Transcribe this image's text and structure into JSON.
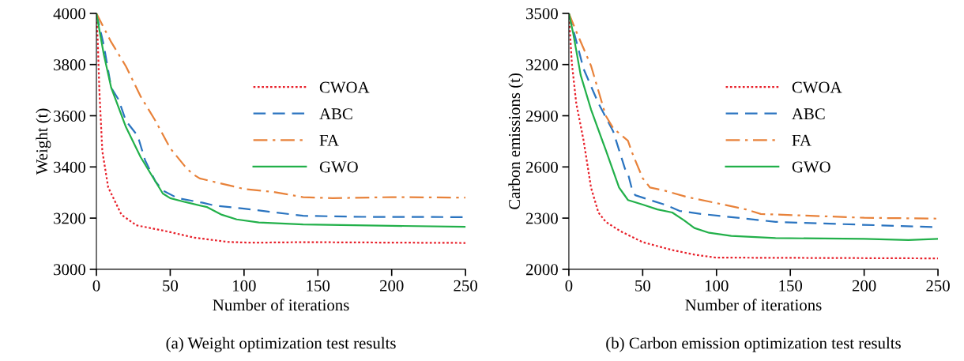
{
  "chart_data": [
    {
      "type": "line",
      "xlabel": "Number of iterations",
      "ylabel": "Weight (t)",
      "annotations": [
        "(a) Weight optimization test results"
      ],
      "xlim": [
        0,
        250
      ],
      "xticks": [
        0,
        50,
        100,
        150,
        200,
        250
      ],
      "ylim": [
        3000,
        4000
      ],
      "yticks": [
        3000,
        3200,
        3400,
        3600,
        3800,
        4000
      ],
      "legend": "center right",
      "grid": false,
      "series": [
        {
          "name": "CWOA",
          "color": "#e8202a",
          "line_style": "dotted",
          "x": [
            0,
            1,
            2,
            4,
            8,
            17,
            27,
            35,
            48,
            66,
            89,
            104,
            141,
            250
          ],
          "values": [
            4000,
            3880,
            3700,
            3462,
            3320,
            3213,
            3172,
            3163,
            3148,
            3124,
            3107,
            3104,
            3106,
            3103
          ]
        },
        {
          "name": "ABC",
          "color": "#2a74c0",
          "line_style": "dashed",
          "x": [
            0,
            5,
            10,
            15,
            20,
            28,
            33,
            40,
            45,
            55,
            72,
            80,
            100,
            140,
            180,
            250
          ],
          "values": [
            4000,
            3876,
            3710,
            3663,
            3580,
            3521,
            3426,
            3343,
            3308,
            3278,
            3260,
            3249,
            3237,
            3209,
            3205,
            3204
          ]
        },
        {
          "name": "FA",
          "color": "#e8823a",
          "line_style": "dashdot",
          "x": [
            0,
            10,
            20,
            30,
            40,
            50,
            60,
            65,
            70,
            100,
            120,
            140,
            160,
            200,
            250
          ],
          "values": [
            4000,
            3888,
            3793,
            3675,
            3580,
            3473,
            3402,
            3373,
            3355,
            3314,
            3302,
            3282,
            3278,
            3282,
            3280
          ]
        },
        {
          "name": "GWO",
          "color": "#22b04a",
          "line_style": "solid",
          "x": [
            0,
            5,
            10,
            20,
            30,
            40,
            45,
            50,
            60,
            75,
            85,
            95,
            110,
            140,
            200,
            250
          ],
          "values": [
            4000,
            3840,
            3710,
            3556,
            3438,
            3343,
            3296,
            3278,
            3263,
            3243,
            3213,
            3195,
            3183,
            3175,
            3170,
            3166
          ]
        }
      ]
    },
    {
      "type": "line",
      "xlabel": "Number of iterations",
      "ylabel": "Carbon emissions (t)",
      "annotations": [
        "(b) Carbon emission optimization test results"
      ],
      "xlim": [
        0,
        250
      ],
      "xticks": [
        0,
        50,
        100,
        150,
        200,
        250
      ],
      "ylim": [
        2000,
        3500
      ],
      "yticks": [
        2000,
        2300,
        2600,
        2900,
        3200,
        3500
      ],
      "legend": "center right",
      "grid": false,
      "series": [
        {
          "name": "CWOA",
          "color": "#e8202a",
          "line_style": "dotted",
          "x": [
            0,
            2,
            5,
            10,
            15,
            20,
            25,
            35,
            50,
            70,
            85,
            100,
            120,
            250
          ],
          "values": [
            3500,
            3211,
            2973,
            2754,
            2479,
            2333,
            2278,
            2223,
            2159,
            2113,
            2086,
            2068,
            2068,
            2064
          ]
        },
        {
          "name": "ABC",
          "color": "#2a74c0",
          "line_style": "dashed",
          "x": [
            0,
            5,
            10,
            20,
            30,
            38,
            40,
            43,
            45,
            55,
            65,
            75,
            90,
            110,
            140,
            170,
            250
          ],
          "values": [
            3500,
            3339,
            3174,
            2973,
            2809,
            2589,
            2562,
            2461,
            2434,
            2406,
            2379,
            2342,
            2324,
            2306,
            2278,
            2269,
            2247
          ]
        },
        {
          "name": "FA",
          "color": "#e8823a",
          "line_style": "dashdot",
          "x": [
            0,
            5,
            15,
            25,
            30,
            40,
            43,
            50,
            55,
            65,
            80,
            100,
            120,
            130,
            160,
            200,
            250
          ],
          "values": [
            3500,
            3394,
            3193,
            2900,
            2827,
            2754,
            2680,
            2534,
            2479,
            2461,
            2424,
            2388,
            2351,
            2324,
            2315,
            2302,
            2297
          ]
        },
        {
          "name": "GWO",
          "color": "#22b04a",
          "line_style": "solid",
          "x": [
            0,
            3,
            8,
            15,
            25,
            34,
            37,
            40,
            50,
            60,
            70,
            78,
            85,
            95,
            110,
            140,
            200,
            230,
            250
          ],
          "values": [
            3500,
            3380,
            3138,
            2937,
            2699,
            2479,
            2443,
            2406,
            2379,
            2351,
            2333,
            2287,
            2242,
            2214,
            2196,
            2183,
            2178,
            2172,
            2178
          ]
        }
      ]
    }
  ]
}
